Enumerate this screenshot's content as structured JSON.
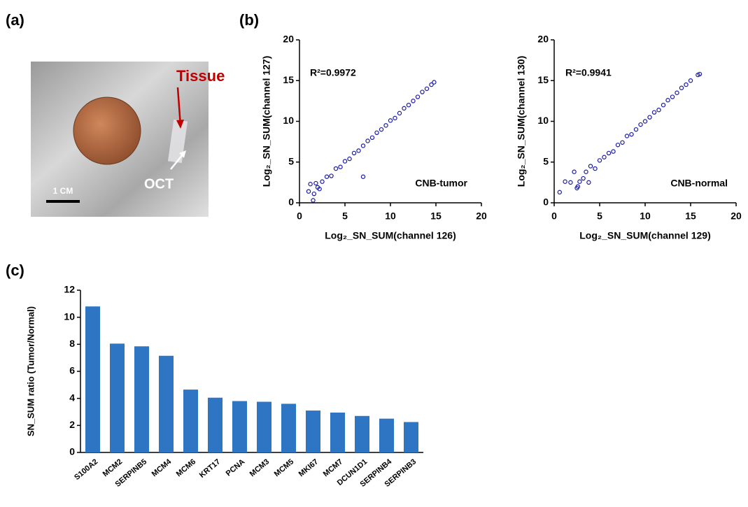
{
  "panel_labels": [
    "(a)",
    "(b)",
    "(c)"
  ],
  "photo": {
    "labels": [
      "Tissue",
      "OCT",
      "1 CM"
    ]
  },
  "chart_data": [
    {
      "type": "scatter",
      "x_label": "Log₂_SN_SUM(channel 126)",
      "y_label": "Log₂_SN_SUM(channel 127)",
      "annotations": [
        "R²=0.9972",
        "CNB-tumor"
      ],
      "color": "#1a1aa8",
      "x": [
        1.0,
        1.5,
        1.8,
        2.2,
        2.5,
        3.0,
        3.5,
        4.0,
        4.5,
        5.0,
        5.5,
        6.0,
        6.5,
        7.0,
        7.5,
        8.0,
        8.5,
        9.0,
        9.5,
        10.0,
        10.5,
        11.0,
        11.5,
        12.0,
        12.5,
        13.0,
        13.5,
        14.0,
        14.5,
        14.8,
        7.0,
        1.2,
        1.6,
        2.0
      ],
      "values": [
        1.4,
        0.3,
        2.4,
        1.7,
        2.6,
        3.2,
        3.3,
        4.2,
        4.4,
        5.1,
        5.4,
        6.1,
        6.4,
        7.0,
        7.6,
        8.0,
        8.6,
        9.0,
        9.5,
        10.1,
        10.4,
        11.0,
        11.6,
        12.0,
        12.5,
        13.0,
        13.6,
        14.0,
        14.5,
        14.8,
        3.2,
        2.3,
        1.1,
        1.9
      ],
      "xlim": [
        0,
        20
      ],
      "xticks": [
        0,
        5,
        10,
        15,
        20
      ],
      "ylim": [
        0,
        20
      ],
      "yticks": [
        0,
        5,
        10,
        15,
        20
      ]
    },
    {
      "type": "scatter",
      "x_label": "Log₂_SN_SUM(channel 129)",
      "y_label": "Log₂_SN_SUM(channel 130)",
      "annotations": [
        "R²=0.9941",
        "CNB-normal"
      ],
      "color": "#1a1aa8",
      "x": [
        0.6,
        1.2,
        1.8,
        2.5,
        2.8,
        3.2,
        3.5,
        4.0,
        4.5,
        5.0,
        5.5,
        6.0,
        6.5,
        7.0,
        7.5,
        8.0,
        8.5,
        9.0,
        9.5,
        10.0,
        10.5,
        11.0,
        11.5,
        12.0,
        12.5,
        13.0,
        13.5,
        14.0,
        14.5,
        15.0,
        15.8,
        16.0,
        3.8,
        2.2,
        2.6
      ],
      "values": [
        1.3,
        2.6,
        2.5,
        1.8,
        2.6,
        3.0,
        3.8,
        4.5,
        4.2,
        5.2,
        5.6,
        6.1,
        6.3,
        7.1,
        7.4,
        8.2,
        8.4,
        9.0,
        9.6,
        10.0,
        10.5,
        11.1,
        11.4,
        12.0,
        12.6,
        13.0,
        13.5,
        14.1,
        14.5,
        15.0,
        15.7,
        15.8,
        2.5,
        3.8,
        2.0
      ],
      "xlim": [
        0,
        20
      ],
      "xticks": [
        0,
        5,
        10,
        15,
        20
      ],
      "ylim": [
        0,
        20
      ],
      "yticks": [
        0,
        5,
        10,
        15,
        20
      ]
    },
    {
      "type": "bar",
      "y_label": "SN_SUM ratio (Tumor/Normal)",
      "color": "#2e75c4",
      "categories": [
        "S100A2",
        "MCM2",
        "SERPINB5",
        "MCM4",
        "MCM6",
        "KRT17",
        "PCNA",
        "MCM3",
        "MCM5",
        "MKI67",
        "MCM7",
        "DCUN1D1",
        "SERPINB4",
        "SERPINB3"
      ],
      "values": [
        10.8,
        8.05,
        7.85,
        7.15,
        4.65,
        4.05,
        3.8,
        3.75,
        3.6,
        3.1,
        2.95,
        2.7,
        2.5,
        2.25
      ],
      "ylim": [
        0,
        12
      ],
      "yticks": [
        0,
        2,
        4,
        6,
        8,
        10,
        12
      ]
    }
  ]
}
